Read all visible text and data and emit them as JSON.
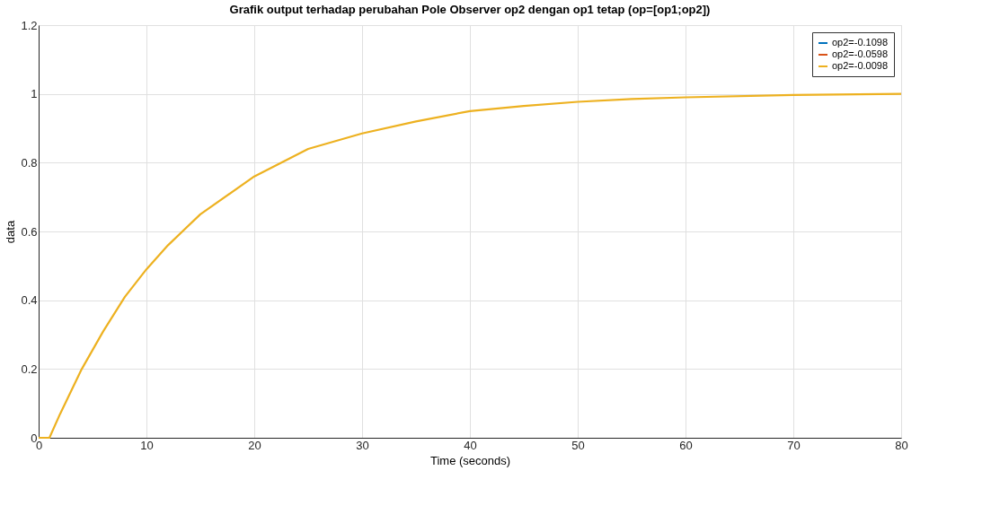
{
  "chart_data": {
    "type": "line",
    "title": "Grafik output terhadap perubahan Pole Observer op2 dengan op1 tetap (op=[op1;op2])",
    "xlabel": "Time (seconds)",
    "ylabel": "data",
    "x": [
      0,
      1,
      2,
      4,
      6,
      8,
      10,
      12,
      15,
      20,
      25,
      30,
      35,
      40,
      45,
      50,
      55,
      60,
      70,
      80
    ],
    "series": [
      {
        "name": "op2=-0.1098",
        "color": "#0072bd",
        "values": [
          null,
          null,
          null,
          null,
          null,
          null,
          null,
          null,
          null,
          null,
          null,
          null,
          null,
          null,
          null,
          null,
          null,
          null,
          null,
          null
        ]
      },
      {
        "name": "op2=-0.0598",
        "color": "#d95319",
        "values": [
          null,
          null,
          null,
          null,
          null,
          null,
          null,
          null,
          null,
          null,
          null,
          null,
          null,
          null,
          null,
          null,
          null,
          null,
          null,
          null
        ]
      },
      {
        "name": "op2=-0.0098",
        "color": "#edb120",
        "values": [
          0,
          0,
          0.07,
          0.2,
          0.31,
          0.41,
          0.49,
          0.56,
          0.65,
          0.76,
          0.84,
          0.885,
          0.92,
          0.95,
          0.965,
          0.977,
          0.985,
          0.99,
          0.997,
          1.0
        ]
      }
    ],
    "xlim": [
      0,
      80
    ],
    "xticks": [
      0,
      10,
      20,
      30,
      40,
      50,
      60,
      70,
      80
    ],
    "ylim": [
      0,
      1.2
    ],
    "yticks": [
      0,
      0.2,
      0.4,
      0.6,
      0.8,
      1,
      1.2
    ],
    "grid": true,
    "legend": "top right",
    "line_style": "solid",
    "marker": "none"
  }
}
